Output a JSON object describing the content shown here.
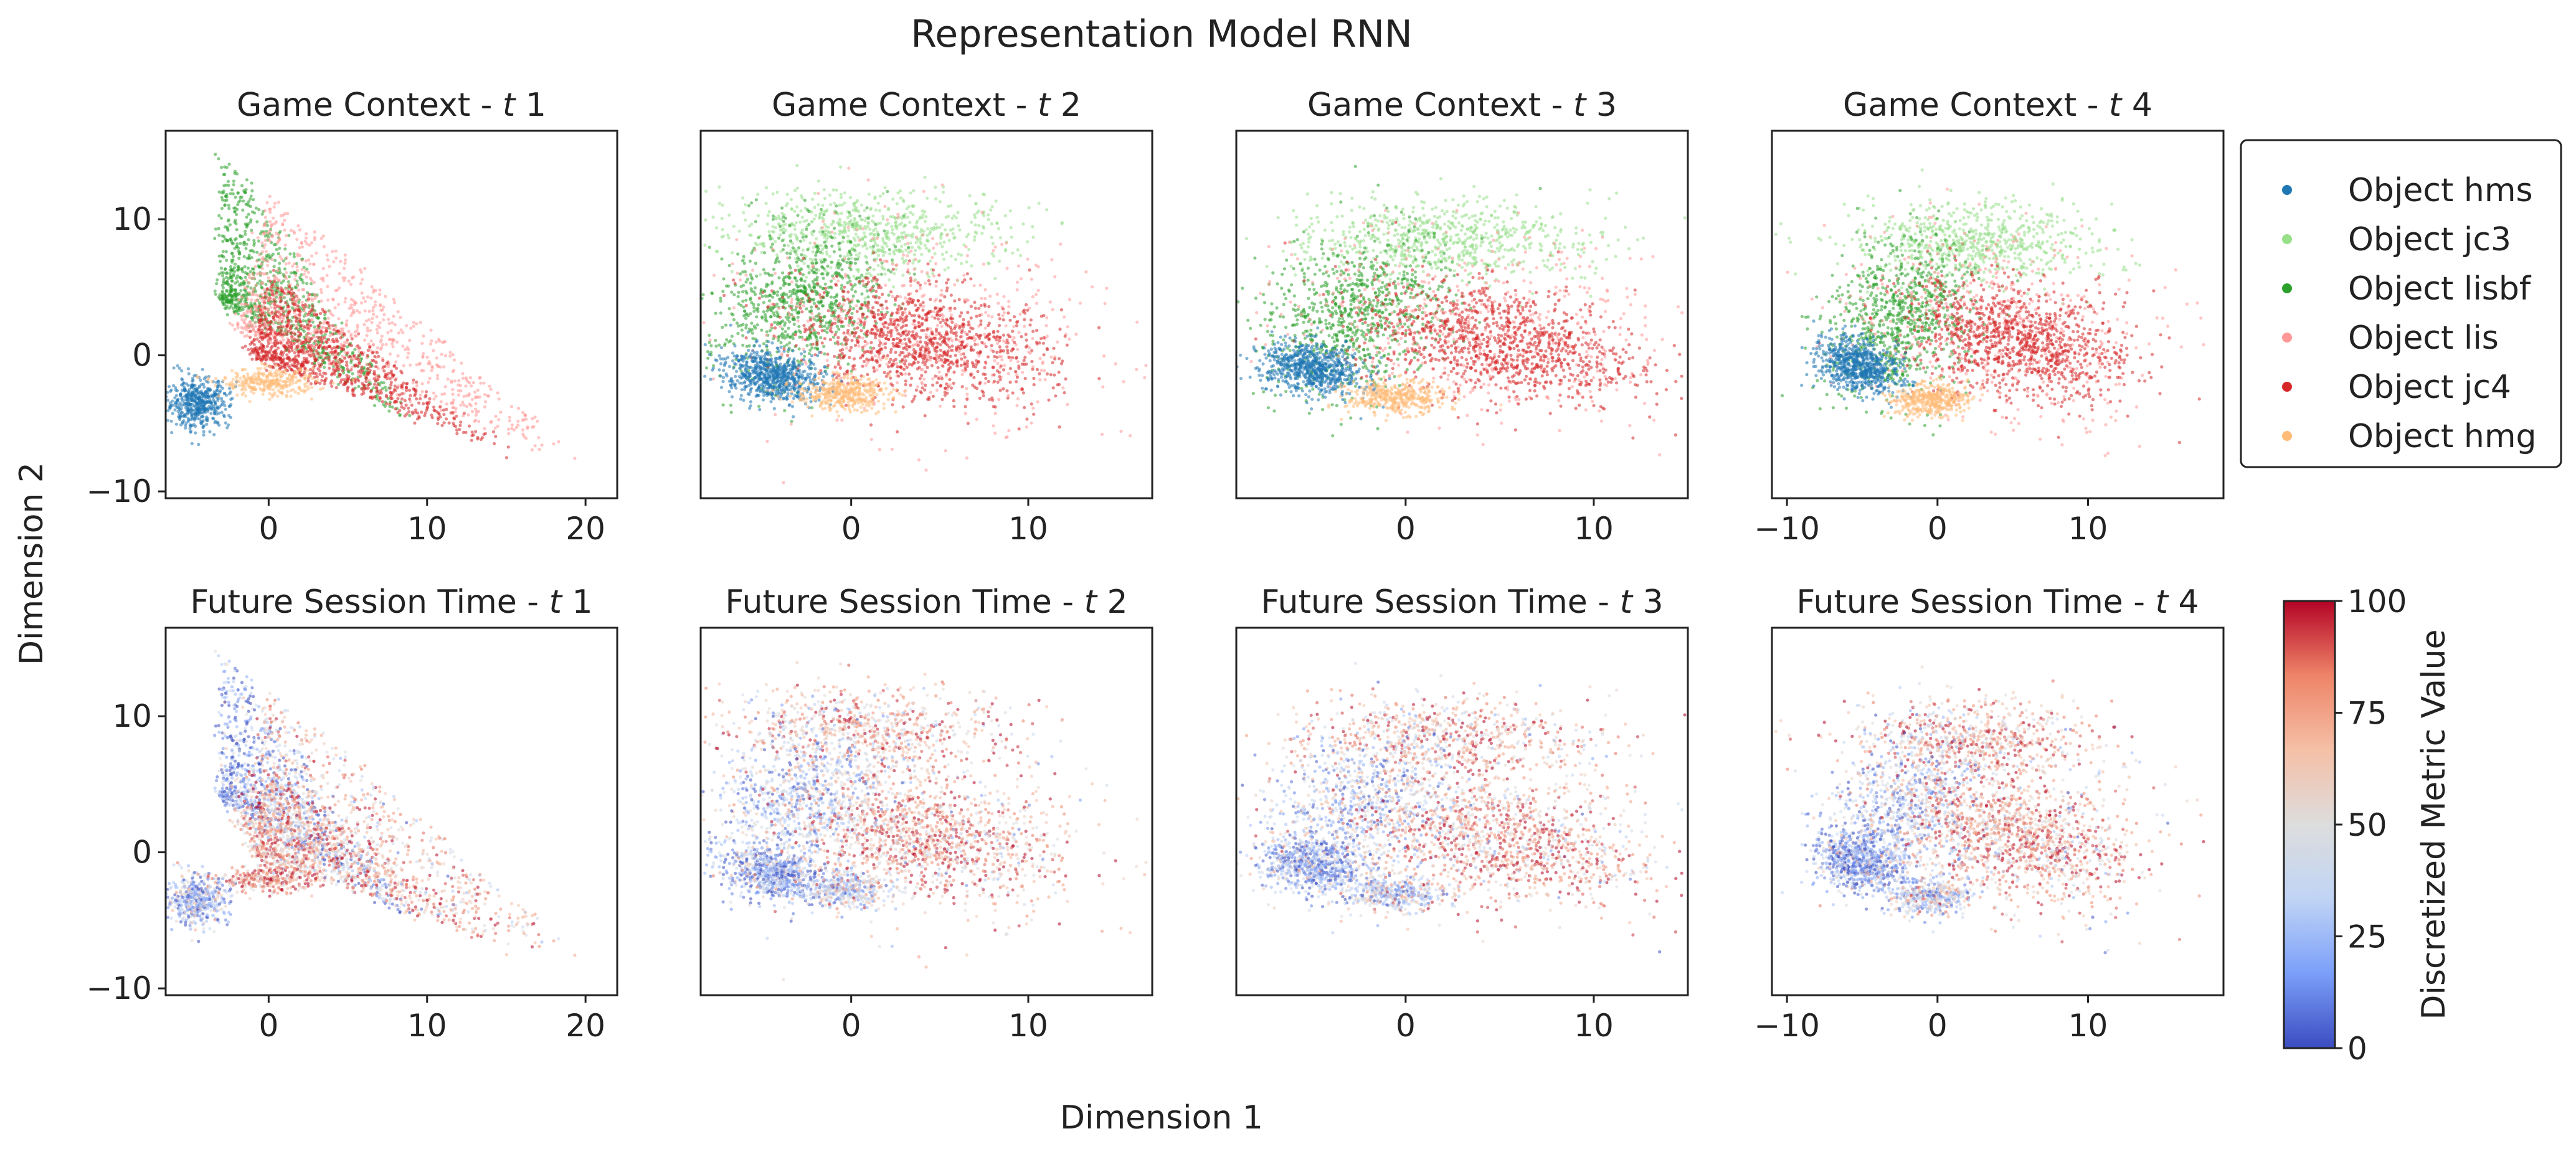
{
  "figure": {
    "title": "Representation Model RNN",
    "xlabel": "Dimension 1",
    "ylabel": "Dimension 2"
  },
  "legend": {
    "placement": "right of top row",
    "entries": [
      {
        "label": "Object hms",
        "color": "#1f77b4"
      },
      {
        "label": "Object jc3",
        "color": "#98df8a"
      },
      {
        "label": "Object lisbf",
        "color": "#2ca02c"
      },
      {
        "label": "Object lis",
        "color": "#ff9896"
      },
      {
        "label": "Object jc4",
        "color": "#d62728"
      },
      {
        "label": "Object hmg",
        "color": "#ffbb78"
      }
    ]
  },
  "colorbar": {
    "label": "Discretized Metric Value",
    "colormap": "coolwarm",
    "range": [
      0,
      100
    ],
    "ticks": [
      "0",
      "25",
      "50",
      "75",
      "100"
    ],
    "colors": [
      "#3b4cc0",
      "#7b9ff9",
      "#c0d4f5",
      "#dddddd",
      "#f5c0a7",
      "#ee8468",
      "#b40426"
    ]
  },
  "chart_data": [
    {
      "type": "scatter",
      "title_prefix": "Game Context - ",
      "title_t": "t",
      "title_n": " 1",
      "coloring": "category",
      "xlim": [
        -6.5,
        22
      ],
      "ylim": [
        -10.5,
        16.5
      ],
      "xticks": [
        {
          "v": 0,
          "t": "0"
        },
        {
          "v": 10,
          "t": "10"
        },
        {
          "v": 20,
          "t": "20"
        }
      ],
      "yticks": [
        {
          "v": -10,
          "t": "−10"
        },
        {
          "v": 0,
          "t": "0"
        },
        {
          "v": 10,
          "t": "10"
        }
      ]
    },
    {
      "type": "scatter",
      "title_prefix": "Game Context - ",
      "title_t": "t",
      "title_n": " 2",
      "coloring": "category",
      "xlim": [
        -8.5,
        17
      ],
      "ylim": [
        -10.5,
        16.5
      ],
      "xticks": [
        {
          "v": 0,
          "t": "0"
        },
        {
          "v": 10,
          "t": "10"
        }
      ],
      "yticks": []
    },
    {
      "type": "scatter",
      "title_prefix": "Game Context - ",
      "title_t": "t",
      "title_n": " 3",
      "coloring": "category",
      "xlim": [
        -9,
        15
      ],
      "ylim": [
        -10.5,
        16.5
      ],
      "xticks": [
        {
          "v": 0,
          "t": "0"
        },
        {
          "v": 10,
          "t": "10"
        }
      ],
      "yticks": []
    },
    {
      "type": "scatter",
      "title_prefix": "Game Context - ",
      "title_t": "t",
      "title_n": " 4",
      "coloring": "category",
      "xlim": [
        -11,
        19
      ],
      "ylim": [
        -10.5,
        16.5
      ],
      "xticks": [
        {
          "v": -10,
          "t": "−10"
        },
        {
          "v": 0,
          "t": "0"
        },
        {
          "v": 10,
          "t": "10"
        }
      ],
      "yticks": []
    },
    {
      "type": "scatter",
      "title_prefix": "Future Session Time - ",
      "title_t": "t",
      "title_n": " 1",
      "coloring": "metric",
      "xlim": [
        -6.5,
        22
      ],
      "ylim": [
        -10.5,
        16.5
      ],
      "xticks": [
        {
          "v": 0,
          "t": "0"
        },
        {
          "v": 10,
          "t": "10"
        },
        {
          "v": 20,
          "t": "20"
        }
      ],
      "yticks": [
        {
          "v": -10,
          "t": "−10"
        },
        {
          "v": 0,
          "t": "0"
        },
        {
          "v": 10,
          "t": "10"
        }
      ]
    },
    {
      "type": "scatter",
      "title_prefix": "Future Session Time - ",
      "title_t": "t",
      "title_n": " 2",
      "coloring": "metric",
      "xlim": [
        -8.5,
        17
      ],
      "ylim": [
        -10.5,
        16.5
      ],
      "xticks": [
        {
          "v": 0,
          "t": "0"
        },
        {
          "v": 10,
          "t": "10"
        }
      ],
      "yticks": []
    },
    {
      "type": "scatter",
      "title_prefix": "Future Session Time - ",
      "title_t": "t",
      "title_n": " 3",
      "coloring": "metric",
      "xlim": [
        -9,
        15
      ],
      "ylim": [
        -10.5,
        16.5
      ],
      "xticks": [
        {
          "v": 0,
          "t": "0"
        },
        {
          "v": 10,
          "t": "10"
        }
      ],
      "yticks": []
    },
    {
      "type": "scatter",
      "title_prefix": "Future Session Time - ",
      "title_t": "t",
      "title_n": " 4",
      "coloring": "metric",
      "xlim": [
        -11,
        19
      ],
      "ylim": [
        -10.5,
        16.5
      ],
      "xticks": [
        {
          "v": -10,
          "t": "−10"
        },
        {
          "v": 0,
          "t": "0"
        },
        {
          "v": 10,
          "t": "10"
        }
      ],
      "yticks": []
    }
  ]
}
